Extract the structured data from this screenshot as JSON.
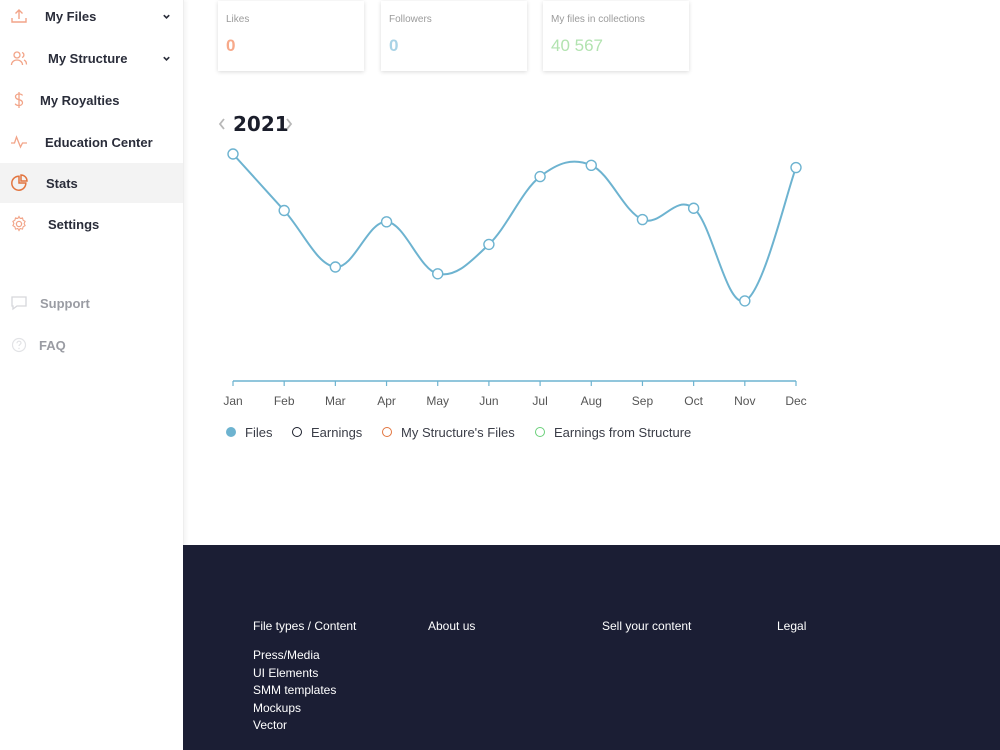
{
  "sidebar": {
    "items": [
      {
        "label": "My Files",
        "icon": "upload-icon"
      },
      {
        "label": "My Structure",
        "icon": "users-icon"
      },
      {
        "label": "My Royalties",
        "icon": "dollar-icon"
      },
      {
        "label": "Education Center",
        "icon": "activity-icon"
      },
      {
        "label": "Stats",
        "icon": "pie-chart-icon",
        "active": true
      },
      {
        "label": "Settings",
        "icon": "gear-icon"
      }
    ],
    "secondary": [
      {
        "label": "Support",
        "icon": "chat-icon"
      },
      {
        "label": "FAQ",
        "icon": "help-icon"
      }
    ]
  },
  "cards": [
    {
      "title": "Likes",
      "value": "0",
      "color": "#f7a98a"
    },
    {
      "title": "Followers",
      "value": "0",
      "color": "#a9d3e6"
    },
    {
      "title": "My files in collections",
      "value": "40 567",
      "color": "#b2e3b0"
    }
  ],
  "year": "2021",
  "chart_data": {
    "type": "line",
    "categories": [
      "Jan",
      "Feb",
      "Mar",
      "Apr",
      "May",
      "Jun",
      "Jul",
      "Aug",
      "Sep",
      "Oct",
      "Nov",
      "Dec"
    ],
    "series": [
      {
        "name": "Files",
        "values": [
          100,
          75,
          50,
          70,
          47,
          60,
          90,
          95,
          71,
          76,
          35,
          94
        ],
        "color": "#6db3d0"
      }
    ],
    "ylim": [
      0,
      100
    ],
    "grid": false,
    "legend_placement": "bottom-left"
  },
  "legend": [
    {
      "label": "Files",
      "color": "#6db3d0",
      "filled": true
    },
    {
      "label": "Earnings",
      "color": "#1b1e2b",
      "filled": false
    },
    {
      "label": "My Structure's Files",
      "color": "#e2753f",
      "filled": false
    },
    {
      "label": "Earnings from Structure",
      "color": "#6ad07a",
      "filled": false
    }
  ],
  "footer": {
    "columns": [
      "File types / Content",
      "About us",
      "Sell your content",
      "Legal"
    ],
    "links": [
      "Press/Media",
      "UI Elements",
      "SMM templates",
      "Mockups",
      "Vector"
    ]
  }
}
